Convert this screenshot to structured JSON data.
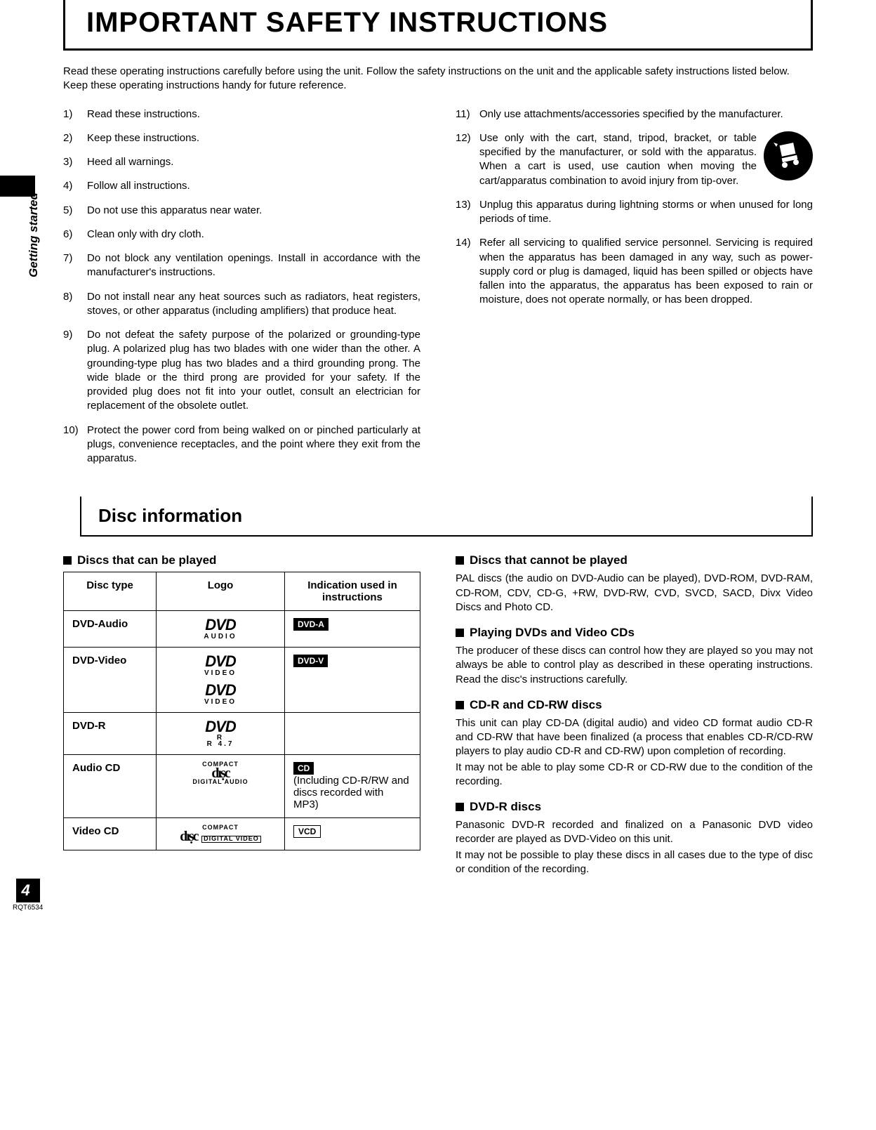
{
  "sideLabel": "Getting started",
  "title": "IMPORTANT SAFETY INSTRUCTIONS",
  "intro": "Read these operating instructions carefully before using the unit. Follow the safety instructions on the unit and the applicable safety instructions listed below. Keep these operating instructions handy for future reference.",
  "leftItems": [
    {
      "n": "1)",
      "t": "Read these instructions."
    },
    {
      "n": "2)",
      "t": "Keep these instructions."
    },
    {
      "n": "3)",
      "t": "Heed all warnings."
    },
    {
      "n": "4)",
      "t": "Follow all instructions."
    },
    {
      "n": "5)",
      "t": "Do not use this apparatus near water."
    },
    {
      "n": "6)",
      "t": "Clean only with dry cloth."
    },
    {
      "n": "7)",
      "t": "Do not block any ventilation openings. Install in accordance with the manufacturer's instructions."
    },
    {
      "n": "8)",
      "t": "Do not install near any heat sources such as radiators, heat registers, stoves, or other apparatus (including amplifiers) that produce heat."
    },
    {
      "n": "9)",
      "t": "Do not defeat the safety purpose of the polarized or grounding-type plug. A polarized plug has two blades with one wider than the other. A grounding-type plug has two blades and a third grounding prong. The wide blade or the third prong are provided for your safety. If the provided plug does not fit into your outlet, consult an electrician for replacement of the obsolete outlet."
    },
    {
      "n": "10)",
      "t": "Protect the power cord from being walked on or pinched particularly at plugs, convenience receptacles, and the point where they exit from the apparatus."
    }
  ],
  "rightItems": [
    {
      "n": "11)",
      "t": "Only use attachments/accessories specified by the manufacturer."
    },
    {
      "n": "12)",
      "t": "Use only with the cart, stand, tripod, bracket, or table specified by the manufacturer, or sold with the apparatus. When a cart is used, use caution when moving the cart/apparatus combination to avoid injury from tip-over."
    },
    {
      "n": "13)",
      "t": "Unplug this apparatus during lightning storms or when unused for long periods of time."
    },
    {
      "n": "14)",
      "t": "Refer all servicing to qualified service personnel. Servicing is required when the apparatus has been damaged in any way, such as power-supply cord or plug is damaged, liquid has been spilled or objects have fallen into the apparatus, the apparatus has been exposed to rain or moisture, does not operate normally, or has been dropped."
    }
  ],
  "sectionTitle": "Disc information",
  "playedHeading": "Discs that can be played",
  "tableHeaders": [
    "Disc type",
    "Logo",
    "Indication used in instructions"
  ],
  "rows": {
    "dvdAudio": {
      "type": "DVD-Audio",
      "logo": "DVD",
      "logoSub": "AUDIO",
      "badge": "DVD-A"
    },
    "dvdVideo": {
      "type": "DVD-Video",
      "logo": "DVD",
      "logoSub": "VIDEO",
      "logo2": "DVD",
      "logoSub2": "VIDEO",
      "badge": "DVD-V"
    },
    "dvdR": {
      "type": "DVD-R",
      "logo": "DVD",
      "logoSub": "R\nR 4.7",
      "badge": ""
    },
    "audioCd": {
      "type": "Audio CD",
      "logoCompact": "COMPACT",
      "logoDisc": "disc",
      "logoSub": "DIGITAL AUDIO",
      "badge": "CD",
      "extra": "(Including CD-R/RW and discs recorded with MP3)"
    },
    "videoCd": {
      "type": "Video CD",
      "logoCompact": "COMPACT",
      "logoDisc": "disc",
      "logoSub": "DIGITAL VIDEO",
      "badge": "VCD"
    }
  },
  "notPlayedHeading": "Discs that cannot be played",
  "notPlayedText": "PAL discs (the audio on DVD-Audio can be played), DVD-ROM, DVD-RAM, CD-ROM, CDV, CD-G, +RW, DVD-RW, CVD, SVCD, SACD, Divx Video Discs and Photo CD.",
  "playingHeading": "Playing DVDs and Video CDs",
  "playingText": "The producer of these discs can control how they are played so you may not always be able to control play as described in these operating instructions. Read the disc's instructions carefully.",
  "cdrHeading": "CD-R and CD-RW discs",
  "cdrText1": "This unit can play CD-DA (digital audio) and video CD format audio CD-R and CD-RW that have been finalized (a process that enables CD-R/CD-RW players to play audio CD-R and CD-RW) upon completion of recording.",
  "cdrText2": "It may not be able to play some CD-R or CD-RW due to the condition of the recording.",
  "dvdrHeading": "DVD-R discs",
  "dvdrText1": "Panasonic DVD-R recorded and finalized on a Panasonic DVD video recorder are played as DVD-Video on this unit.",
  "dvdrText2": "It may not be possible to play these discs in all cases due to the type of disc or condition of the recording.",
  "pageNumber": "4",
  "docRef": "RQT6534"
}
